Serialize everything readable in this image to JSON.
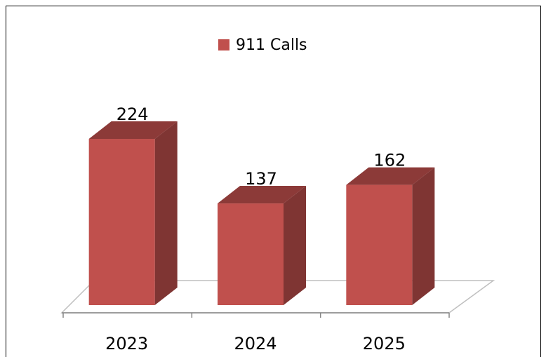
{
  "chart_data": {
    "type": "bar3d",
    "series": [
      {
        "name": "911 Calls",
        "color": "#c0504d",
        "values": [
          224,
          137,
          162
        ]
      }
    ],
    "categories": [
      "2023",
      "2024",
      "2025"
    ],
    "legend": "top"
  }
}
